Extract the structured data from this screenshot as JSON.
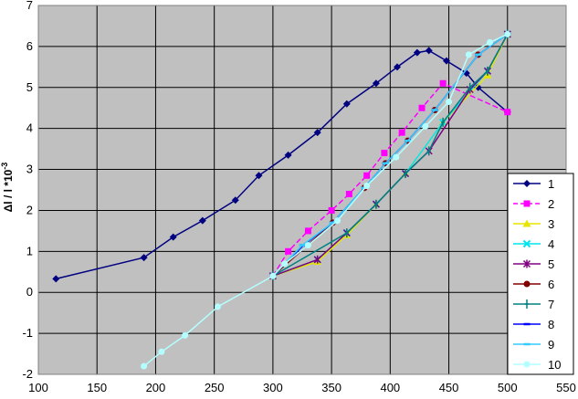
{
  "chart_data": {
    "type": "line",
    "ylabel_main": "Δl / l *10",
    "ylabel_exp": "-3",
    "xlim": [
      100,
      550
    ],
    "ylim": [
      -2,
      7
    ],
    "xticks": [
      "100",
      "150",
      "200",
      "250",
      "300",
      "350",
      "400",
      "450",
      "500",
      "550"
    ],
    "yticks": [
      "-2",
      "-1",
      "0",
      "1",
      "2",
      "3",
      "4",
      "5",
      "6",
      "7"
    ],
    "grid": true,
    "legend_position": "right",
    "series": [
      {
        "name": "1",
        "color": "#000080",
        "marker": "diamond",
        "dashed": false,
        "x": [
          115,
          190,
          215,
          240,
          268,
          288,
          313,
          338,
          363,
          388,
          406,
          423,
          433,
          448,
          465,
          475,
          500
        ],
        "y": [
          0.33,
          0.85,
          1.35,
          1.75,
          2.25,
          2.85,
          3.35,
          3.9,
          4.6,
          5.1,
          5.5,
          5.85,
          5.9,
          5.65,
          5.35,
          5.0,
          4.4
        ]
      },
      {
        "name": "2",
        "color": "#ff00ff",
        "marker": "square",
        "dashed": true,
        "x": [
          300,
          313,
          330,
          350,
          365,
          380,
          395,
          410,
          427,
          445,
          500
        ],
        "y": [
          0.4,
          1.0,
          1.5,
          2.0,
          2.4,
          2.85,
          3.4,
          3.9,
          4.5,
          5.1,
          4.4
        ]
      },
      {
        "name": "3",
        "color": "#e6e600",
        "marker": "triangle",
        "dashed": false,
        "x": [
          300,
          338,
          363,
          388,
          413,
          445,
          483,
          500
        ],
        "y": [
          0.4,
          0.75,
          1.4,
          2.15,
          2.9,
          4.15,
          5.3,
          6.3
        ]
      },
      {
        "name": "4",
        "color": "#00e5ee",
        "marker": "x",
        "dashed": false,
        "x": [
          300,
          338,
          363,
          388,
          413,
          445,
          483,
          500
        ],
        "y": [
          0.4,
          0.8,
          1.45,
          2.15,
          2.9,
          4.15,
          5.4,
          6.3
        ]
      },
      {
        "name": "5",
        "color": "#800080",
        "marker": "star",
        "dashed": false,
        "x": [
          300,
          338,
          363,
          388,
          413,
          433,
          468,
          483,
          500
        ],
        "y": [
          0.4,
          0.8,
          1.45,
          2.15,
          2.9,
          3.45,
          4.95,
          5.4,
          6.3
        ]
      },
      {
        "name": "6",
        "color": "#800000",
        "marker": "circle",
        "dashed": false,
        "x": [
          300,
          351,
          378,
          396,
          415,
          438,
          475,
          500
        ],
        "y": [
          0.4,
          1.7,
          2.55,
          3.15,
          3.7,
          4.45,
          5.8,
          6.3
        ]
      },
      {
        "name": "7",
        "color": "#008080",
        "marker": "plus",
        "dashed": false,
        "x": [
          300,
          363,
          388,
          413,
          433,
          445,
          468,
          483,
          500
        ],
        "y": [
          0.4,
          1.45,
          2.15,
          2.9,
          3.45,
          4.15,
          5.0,
          5.4,
          6.3
        ]
      },
      {
        "name": "8",
        "color": "#0000ff",
        "marker": "dash",
        "dashed": false,
        "x": [
          300,
          326,
          351,
          378,
          396,
          415,
          438,
          475,
          500
        ],
        "y": [
          0.4,
          1.15,
          1.7,
          2.55,
          3.15,
          3.7,
          4.45,
          5.8,
          6.3
        ]
      },
      {
        "name": "9",
        "color": "#33ccff",
        "marker": "dash",
        "dashed": false,
        "x": [
          300,
          325,
          351,
          378,
          396,
          415,
          438,
          475,
          500
        ],
        "y": [
          0.4,
          1.15,
          1.7,
          2.55,
          3.15,
          3.7,
          4.45,
          5.8,
          6.3
        ]
      },
      {
        "name": "10",
        "color": "#b3ffff",
        "marker": "circle",
        "dashed": false,
        "x": [
          190,
          205,
          225,
          253,
          300,
          310,
          330,
          355,
          380,
          405,
          430,
          450,
          467,
          485,
          500
        ],
        "y": [
          -1.8,
          -1.45,
          -1.05,
          -0.35,
          0.4,
          0.7,
          1.15,
          1.75,
          2.6,
          3.3,
          4.05,
          4.65,
          5.8,
          6.1,
          6.3
        ]
      }
    ]
  }
}
